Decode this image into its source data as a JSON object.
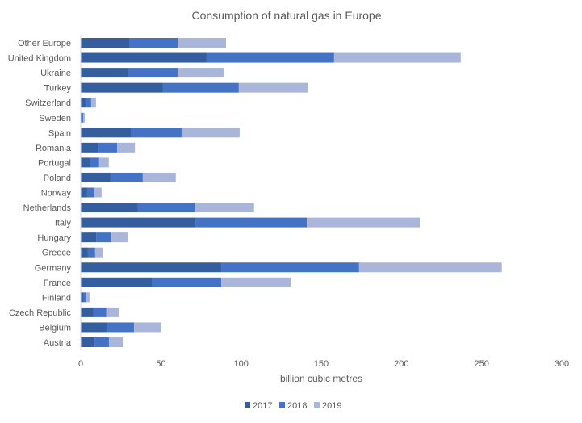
{
  "chart_data": {
    "type": "bar",
    "orientation": "horizontal",
    "stacked": true,
    "title": "Consumption of natural gas in Europe",
    "xlabel": "billion cubic metres",
    "ylabel": "",
    "xlim": [
      0,
      300
    ],
    "xticks": [
      0,
      50,
      100,
      150,
      200,
      250,
      300
    ],
    "grid": false,
    "legend_position": "bottom",
    "categories": [
      "Austria",
      "Belgium",
      "Czech Republic",
      "Finland",
      "France",
      "Germany",
      "Greece",
      "Hungary",
      "Italy",
      "Netherlands",
      "Norway",
      "Poland",
      "Portugal",
      "Romania",
      "Spain",
      "Sweden",
      "Switzerland",
      "Turkey",
      "Ukraine",
      "United Kingdom",
      "Other Europe"
    ],
    "series": [
      {
        "name": "2017",
        "color": "#355E9F",
        "values": [
          8.6,
          16.1,
          8.0,
          1.5,
          44.3,
          87.6,
          4.5,
          9.6,
          71.5,
          35.7,
          4.0,
          18.6,
          6.0,
          11.1,
          31.2,
          0.5,
          3.0,
          51.3,
          29.7,
          78.5,
          30.2
        ]
      },
      {
        "name": "2018",
        "color": "#4472C4",
        "values": [
          9.0,
          17.1,
          8.0,
          2.0,
          43.3,
          86.0,
          4.5,
          9.6,
          69.5,
          35.7,
          4.5,
          20.1,
          5.5,
          11.6,
          31.7,
          1.0,
          3.5,
          47.3,
          30.7,
          79.5,
          30.2
        ]
      },
      {
        "name": "2019",
        "color": "#A9B6D9",
        "values": [
          8.6,
          17.1,
          8.0,
          2.0,
          43.3,
          89.0,
          5.0,
          10.0,
          70.4,
          36.7,
          4.5,
          20.6,
          6.0,
          11.1,
          36.2,
          1.0,
          3.0,
          43.3,
          28.7,
          79.0,
          30.2
        ]
      }
    ]
  }
}
